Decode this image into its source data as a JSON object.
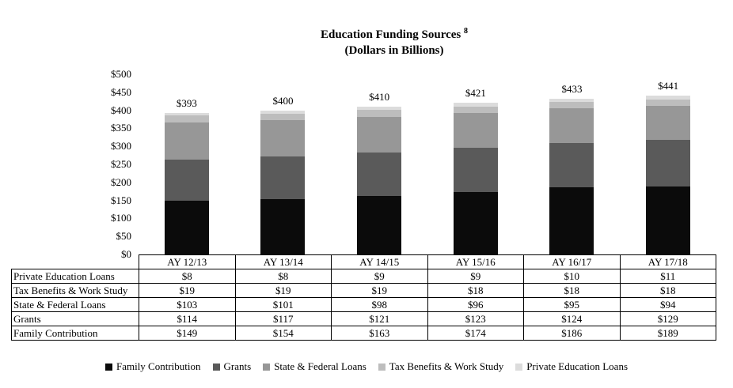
{
  "title": {
    "line1": "Education Funding Sources",
    "superscript": "8",
    "line2": "(Dollars in Billions)"
  },
  "chart_data": {
    "type": "bar",
    "stacked": true,
    "grid": false,
    "legend_position": "bottom",
    "categories": [
      "AY 12/13",
      "AY 13/14",
      "AY 14/15",
      "AY 15/16",
      "AY 16/17",
      "AY 17/18"
    ],
    "series": [
      {
        "name": "Family Contribution",
        "color": "#0b0b0b",
        "values": [
          149,
          154,
          163,
          174,
          186,
          189
        ],
        "labels": [
          "$149",
          "$154",
          "$163",
          "$174",
          "$186",
          "$189"
        ]
      },
      {
        "name": "Grants",
        "color": "#5a5a5a",
        "values": [
          114,
          117,
          121,
          123,
          124,
          129
        ],
        "labels": [
          "$114",
          "$117",
          "$121",
          "$123",
          "$124",
          "$129"
        ]
      },
      {
        "name": "State & Federal Loans",
        "color": "#979797",
        "values": [
          103,
          101,
          98,
          96,
          95,
          94
        ],
        "labels": [
          "$103",
          "$101",
          "$98",
          "$96",
          "$95",
          "$94"
        ]
      },
      {
        "name": "Tax Benefits & Work Study",
        "color": "#bdbdbd",
        "values": [
          19,
          19,
          19,
          18,
          18,
          18
        ],
        "labels": [
          "$19",
          "$19",
          "$19",
          "$18",
          "$18",
          "$18"
        ]
      },
      {
        "name": "Private Education Loans",
        "color": "#dcdcdc",
        "values": [
          8,
          8,
          9,
          9,
          10,
          11
        ],
        "labels": [
          "$8",
          "$8",
          "$9",
          "$9",
          "$10",
          "$11"
        ]
      }
    ],
    "totals": [
      "$393",
      "$400",
      "$410",
      "$421",
      "$433",
      "$441"
    ],
    "y_axis": {
      "min": 0,
      "max": 500,
      "ticks": [
        "$500",
        "$450",
        "$400",
        "$350",
        "$300",
        "$250",
        "$200",
        "$150",
        "$100",
        "$50",
        "$0"
      ]
    }
  }
}
